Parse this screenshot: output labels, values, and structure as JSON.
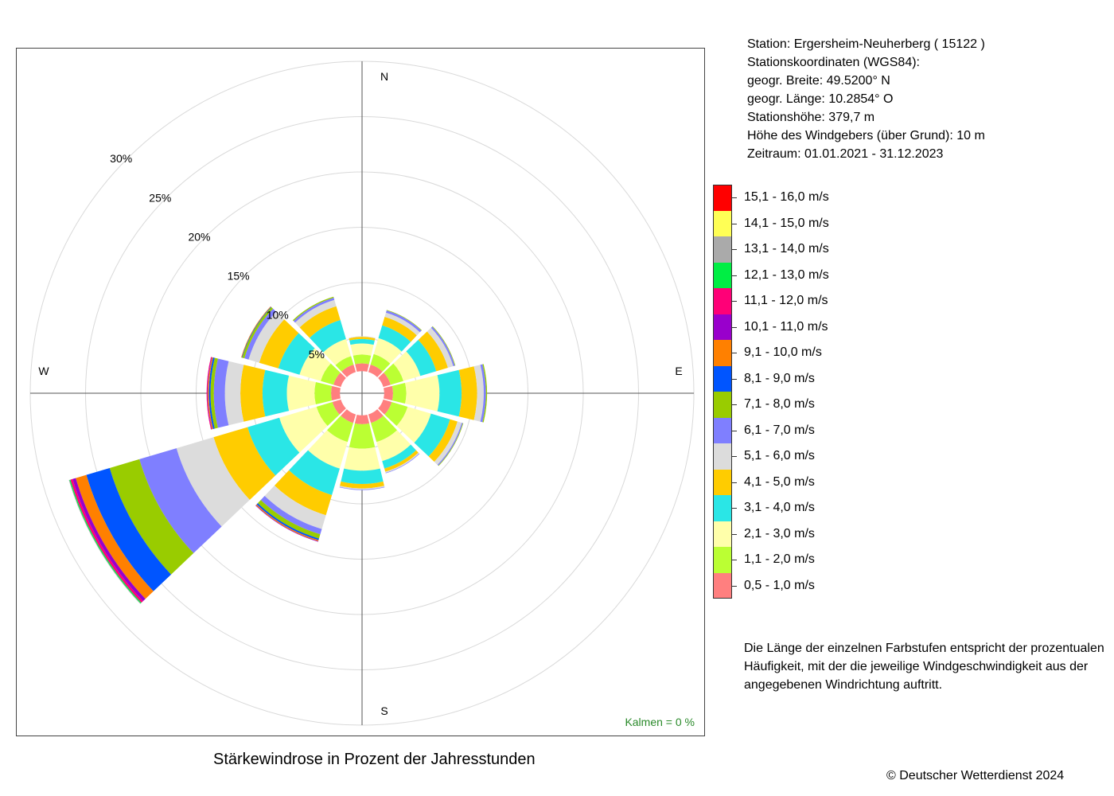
{
  "station": {
    "line1": "Station:  Ergersheim-Neuherberg  ( 15122 )",
    "line2": "Stationskoordinaten (WGS84):",
    "line3": "geogr. Breite: 49.5200° N",
    "line4": "geogr. Länge: 10.2854° O",
    "line5": "Stationshöhe: 379,7 m",
    "line6": "Höhe des Windgebers (über Grund): 10 m",
    "line7": "Zeitraum: 01.01.2021 - 31.12.2023"
  },
  "legend_note": {
    "line1": "Die Länge der einzelnen Farbstufen entspricht der prozentualen",
    "line2": "Häufigkeit, mit der die jeweilige Windgeschwindigkeit aus der",
    "line3": "angegebenen Windrichtung auftritt."
  },
  "copyright": "© Deutscher Wetterdienst  2024",
  "chart_data": {
    "type": "wind_rose",
    "title": "Stärkewindrose in Prozent der Jahresstunden",
    "calm_label": "Kalmen  =  0 %",
    "compass": {
      "N": "N",
      "E": "E",
      "S": "S",
      "W": "W"
    },
    "rings": [
      5,
      10,
      15,
      20,
      25,
      30
    ],
    "ring_labels": [
      "5%",
      "10%",
      "15%",
      "20%",
      "25%",
      "30%"
    ],
    "inner_hole_percent": 2.0,
    "bins": [
      {
        "label": "0,5 - 1,0 m/s",
        "color": "#FF7F7F"
      },
      {
        "label": "1,1 - 2,0 m/s",
        "color": "#BBFF33"
      },
      {
        "label": "2,1 - 3,0 m/s",
        "color": "#FFFFAA"
      },
      {
        "label": "3,1 - 4,0 m/s",
        "color": "#2AE6E6"
      },
      {
        "label": "4,1 - 5,0 m/s",
        "color": "#FFCC00"
      },
      {
        "label": "5,1 - 6,0 m/s",
        "color": "#DCDCDC"
      },
      {
        "label": "6,1 - 7,0 m/s",
        "color": "#7F7FFF"
      },
      {
        "label": "7,1 - 8,0 m/s",
        "color": "#99CC00"
      },
      {
        "label": "8,1 - 9,0 m/s",
        "color": "#0055FF"
      },
      {
        "label": "9,1 - 10,0 m/s",
        "color": "#FF8000"
      },
      {
        "label": "10,1 - 11,0 m/s",
        "color": "#9900CC"
      },
      {
        "label": "11,1 - 12,0 m/s",
        "color": "#FF0077"
      },
      {
        "label": "12,1 - 13,0 m/s",
        "color": "#00EE44"
      },
      {
        "label": "13,1 - 14,0 m/s",
        "color": "#AAAAAA"
      },
      {
        "label": "14,1 - 15,0 m/s",
        "color": "#FFFF55"
      },
      {
        "label": "15,1 - 16,0 m/s",
        "color": "#FF0000"
      }
    ],
    "sectors": [
      {
        "direction_deg": 0,
        "values": [
          0.7,
          0.8,
          1.0,
          0.4,
          0.2,
          0.05
        ]
      },
      {
        "direction_deg": 30,
        "values": [
          0.7,
          1.0,
          1.5,
          1.2,
          0.8,
          0.4,
          0.2,
          0.05
        ]
      },
      {
        "direction_deg": 60,
        "values": [
          0.7,
          1.2,
          1.6,
          1.5,
          1.1,
          0.5,
          0.15,
          0.05
        ]
      },
      {
        "direction_deg": 90,
        "values": [
          0.8,
          1.2,
          3.0,
          2.0,
          1.4,
          0.6,
          0.2,
          0.1
        ]
      },
      {
        "direction_deg": 120,
        "values": [
          0.8,
          1.5,
          2.2,
          1.8,
          0.7,
          0.4,
          0.1,
          0.05
        ]
      },
      {
        "direction_deg": 150,
        "values": [
          0.8,
          1.8,
          1.8,
          0.7,
          0.3,
          0.1,
          0.05
        ]
      },
      {
        "direction_deg": 180,
        "values": [
          0.8,
          2.2,
          2.0,
          1.2,
          0.4,
          0.1,
          0.05
        ]
      },
      {
        "direction_deg": 210,
        "values": [
          0.8,
          1.8,
          2.5,
          2.5,
          1.9,
          1.3,
          0.5,
          0.4,
          0.15,
          0.1,
          0.05
        ]
      },
      {
        "direction_deg": 240,
        "values": [
          0.8,
          1.5,
          3.5,
          3.0,
          3.2,
          3.5,
          3.5,
          2.8,
          2.2,
          1.0,
          0.3,
          0.2,
          0.1,
          0.05
        ]
      },
      {
        "direction_deg": 270,
        "values": [
          0.8,
          1.5,
          2.5,
          2.2,
          2.0,
          1.4,
          1.0,
          0.3,
          0.15,
          0.1,
          0.05,
          0.05
        ]
      },
      {
        "direction_deg": 300,
        "values": [
          0.7,
          1.2,
          2.0,
          2.0,
          1.8,
          1.0,
          0.4,
          0.2,
          0.05,
          0.05
        ]
      },
      {
        "direction_deg": 330,
        "values": [
          0.7,
          0.8,
          1.6,
          1.8,
          1.3,
          0.6,
          0.2,
          0.1
        ]
      }
    ]
  }
}
